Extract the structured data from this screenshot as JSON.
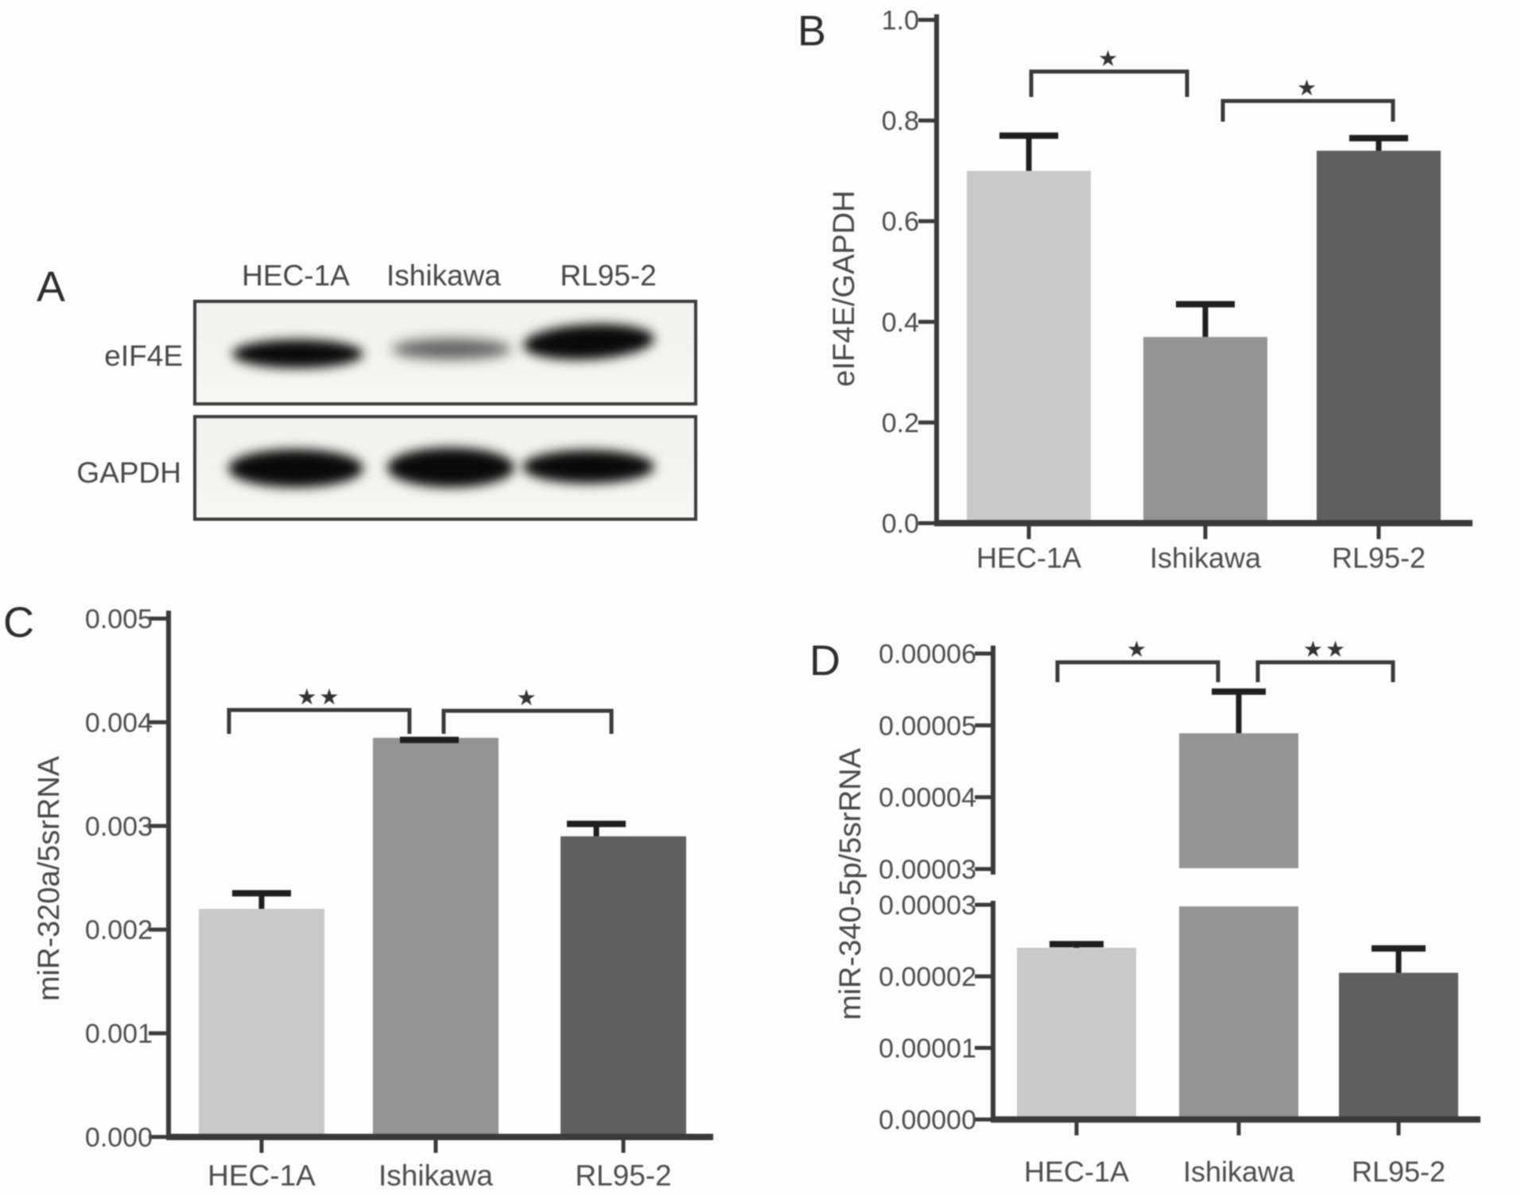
{
  "style": {
    "bar_colors": [
      "#c9c9c9",
      "#949494",
      "#5f5f5f"
    ],
    "axis_color": "#3a3a3a",
    "text_color": "#4c4c4c",
    "error_color": "#1f1f1f",
    "background": "#fdfdfd"
  },
  "blot": {
    "panel_letter": "A",
    "lane_labels": [
      "HEC-1A",
      "Ishikawa",
      "RL95-2"
    ],
    "row_labels": [
      "eIF4E",
      "GAPDH"
    ],
    "band_intensity": {
      "eIF4E": [
        "strong",
        "weak",
        "strong"
      ],
      "GAPDH": [
        "strong",
        "strong",
        "strong"
      ]
    }
  },
  "chart_data": [
    {
      "id": "B",
      "panel_letter": "B",
      "type": "bar",
      "categories": [
        "HEC-1A",
        "Ishikawa",
        "RL95-2"
      ],
      "values": [
        0.7,
        0.37,
        0.74
      ],
      "error_caps": [
        0.77,
        0.435,
        0.765
      ],
      "title": "",
      "xlabel": "",
      "ylabel": "eIF4E/GAPDH",
      "ylim": [
        0,
        1.0
      ],
      "yticks": [
        0,
        0.2,
        0.4,
        0.6,
        0.8,
        1.0
      ],
      "ytick_labels": [
        "0.0",
        "0.2",
        "0.4",
        "0.6",
        "0.8",
        "1.0"
      ],
      "grid": false,
      "legend": null,
      "significance": [
        {
          "between": [
            0,
            1
          ],
          "label": "*"
        },
        {
          "between": [
            1,
            2
          ],
          "label": "*"
        }
      ]
    },
    {
      "id": "C",
      "panel_letter": "C",
      "type": "bar",
      "categories": [
        "HEC-1A",
        "Ishikawa",
        "RL95-2"
      ],
      "values": [
        0.0022,
        0.00385,
        0.0029
      ],
      "error_caps": [
        0.00235,
        0.00383,
        0.00302
      ],
      "title": "",
      "xlabel": "",
      "ylabel": "miR-320a/5srRNA",
      "ylim": [
        0,
        0.005
      ],
      "yticks": [
        0,
        0.001,
        0.002,
        0.003,
        0.004,
        0.005
      ],
      "ytick_labels": [
        "0.000",
        "0.001",
        "0.002",
        "0.003",
        "0.004",
        "0.005"
      ],
      "grid": false,
      "legend": null,
      "significance": [
        {
          "between": [
            0,
            1
          ],
          "label": "**"
        },
        {
          "between": [
            1,
            2
          ],
          "label": "*"
        }
      ]
    },
    {
      "id": "D",
      "panel_letter": "D",
      "type": "bar",
      "categories": [
        "HEC-1A",
        "Ishikawa",
        "RL95-2"
      ],
      "values": [
        2.4e-05,
        4.89e-05,
        2.05e-05
      ],
      "error_caps": [
        2.45e-05,
        5.47e-05,
        2.39e-05
      ],
      "title": "",
      "xlabel": "",
      "ylabel": "miR-340-5p/5srRNA",
      "axis_break": {
        "upper": [
          3e-05,
          6e-05
        ],
        "lower": [
          0,
          3e-05
        ]
      },
      "yticks_upper": [
        3e-05,
        4e-05,
        5e-05,
        6e-05
      ],
      "ytick_labels_upper": [
        "0.00003",
        "0.00004",
        "0.00005",
        "0.00006"
      ],
      "yticks_lower": [
        0,
        1e-05,
        2e-05,
        3e-05
      ],
      "ytick_labels_lower": [
        "0.00000",
        "0.00001",
        "0.00002",
        "0.00003"
      ],
      "grid": false,
      "legend": null,
      "significance": [
        {
          "between": [
            0,
            1
          ],
          "label": "*"
        },
        {
          "between": [
            1,
            2
          ],
          "label": "**"
        }
      ]
    }
  ]
}
